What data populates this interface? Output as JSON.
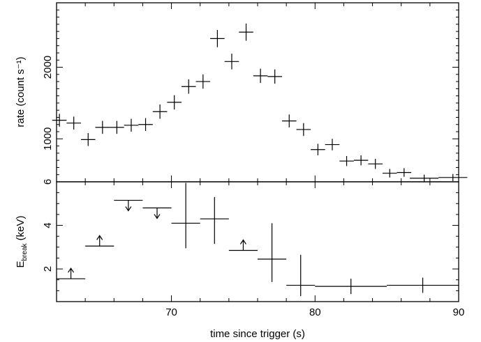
{
  "chart_data": [
    {
      "type": "scatter",
      "title": "",
      "xlabel": "time since trigger (s)",
      "ylabel": "rate (count s⁻¹)",
      "xlim": [
        62,
        90
      ],
      "ylim": [
        400,
        2900
      ],
      "yticks": [
        1000,
        2000
      ],
      "xticks": [
        70,
        80,
        90
      ],
      "grid": false,
      "legend": "none",
      "points": [
        {
          "x": 62.2,
          "xerr": 0.5,
          "y": 1260,
          "yerr": 90
        },
        {
          "x": 63.2,
          "xerr": 0.5,
          "y": 1220,
          "yerr": 90
        },
        {
          "x": 64.2,
          "xerr": 0.5,
          "y": 990,
          "yerr": 90
        },
        {
          "x": 65.2,
          "xerr": 0.5,
          "y": 1160,
          "yerr": 90
        },
        {
          "x": 66.2,
          "xerr": 0.5,
          "y": 1160,
          "yerr": 90
        },
        {
          "x": 67.2,
          "xerr": 0.5,
          "y": 1190,
          "yerr": 90
        },
        {
          "x": 68.2,
          "xerr": 0.5,
          "y": 1200,
          "yerr": 90
        },
        {
          "x": 69.2,
          "xerr": 0.5,
          "y": 1380,
          "yerr": 100
        },
        {
          "x": 70.2,
          "xerr": 0.5,
          "y": 1510,
          "yerr": 100
        },
        {
          "x": 71.2,
          "xerr": 0.5,
          "y": 1730,
          "yerr": 100
        },
        {
          "x": 72.2,
          "xerr": 0.5,
          "y": 1800,
          "yerr": 100
        },
        {
          "x": 73.2,
          "xerr": 0.5,
          "y": 2400,
          "yerr": 120
        },
        {
          "x": 74.2,
          "xerr": 0.5,
          "y": 2080,
          "yerr": 110
        },
        {
          "x": 75.2,
          "xerr": 0.5,
          "y": 2490,
          "yerr": 120
        },
        {
          "x": 76.2,
          "xerr": 0.5,
          "y": 1880,
          "yerr": 100
        },
        {
          "x": 77.2,
          "xerr": 0.5,
          "y": 1870,
          "yerr": 100
        },
        {
          "x": 78.2,
          "xerr": 0.5,
          "y": 1250,
          "yerr": 90
        },
        {
          "x": 79.2,
          "xerr": 0.5,
          "y": 1130,
          "yerr": 90
        },
        {
          "x": 80.2,
          "xerr": 0.5,
          "y": 850,
          "yerr": 80
        },
        {
          "x": 81.2,
          "xerr": 0.5,
          "y": 920,
          "yerr": 80
        },
        {
          "x": 82.2,
          "xerr": 0.5,
          "y": 690,
          "yerr": 70
        },
        {
          "x": 83.2,
          "xerr": 0.5,
          "y": 700,
          "yerr": 70
        },
        {
          "x": 84.2,
          "xerr": 0.5,
          "y": 650,
          "yerr": 70
        },
        {
          "x": 85.2,
          "xerr": 0.5,
          "y": 520,
          "yerr": 60
        },
        {
          "x": 86.2,
          "xerr": 0.5,
          "y": 530,
          "yerr": 60
        },
        {
          "x": 87.6,
          "xerr": 1.0,
          "y": 450,
          "yerr": 50
        },
        {
          "x": 89.6,
          "xerr": 1.0,
          "y": 460,
          "yerr": 50
        }
      ]
    },
    {
      "type": "scatter",
      "title": "",
      "xlabel": "time since trigger (s)",
      "ylabel": "E",
      "ylabel_subscript": "break",
      "ylabel_unit": " (keV)",
      "xlim": [
        62,
        90
      ],
      "ylim": [
        0.5,
        6
      ],
      "yticks": [
        2,
        4,
        6
      ],
      "xticks": [
        70,
        80,
        90
      ],
      "grid": false,
      "legend": "none",
      "points": [
        {
          "x": 63,
          "xerr": 1,
          "y": 1.55,
          "limit": "lower"
        },
        {
          "x": 65,
          "xerr": 1,
          "y": 3.05,
          "limit": "lower"
        },
        {
          "x": 67,
          "xerr": 1,
          "y": 5.15,
          "limit": "upper"
        },
        {
          "x": 69,
          "xerr": 1,
          "y": 4.8,
          "limit": "upper"
        },
        {
          "x": 71,
          "xerr": 1,
          "y": 4.1,
          "ylow": 2.95,
          "yhigh": 5.95
        },
        {
          "x": 73,
          "xerr": 1,
          "y": 4.3,
          "ylow": 3.15,
          "yhigh": 5.3
        },
        {
          "x": 75,
          "xerr": 1,
          "y": 2.85,
          "limit": "lower"
        },
        {
          "x": 77,
          "xerr": 1,
          "y": 2.45,
          "ylow": 1.4,
          "yhigh": 4.1
        },
        {
          "x": 79,
          "xerr": 1,
          "y": 1.25,
          "ylow": 0.75,
          "yhigh": 2.65
        },
        {
          "x": 82.5,
          "xerr": 2.5,
          "y": 1.2,
          "ylow": 0.85,
          "yhigh": 1.55
        },
        {
          "x": 87.5,
          "xerr": 2.5,
          "y": 1.25,
          "ylow": 0.9,
          "yhigh": 1.6
        }
      ]
    }
  ]
}
